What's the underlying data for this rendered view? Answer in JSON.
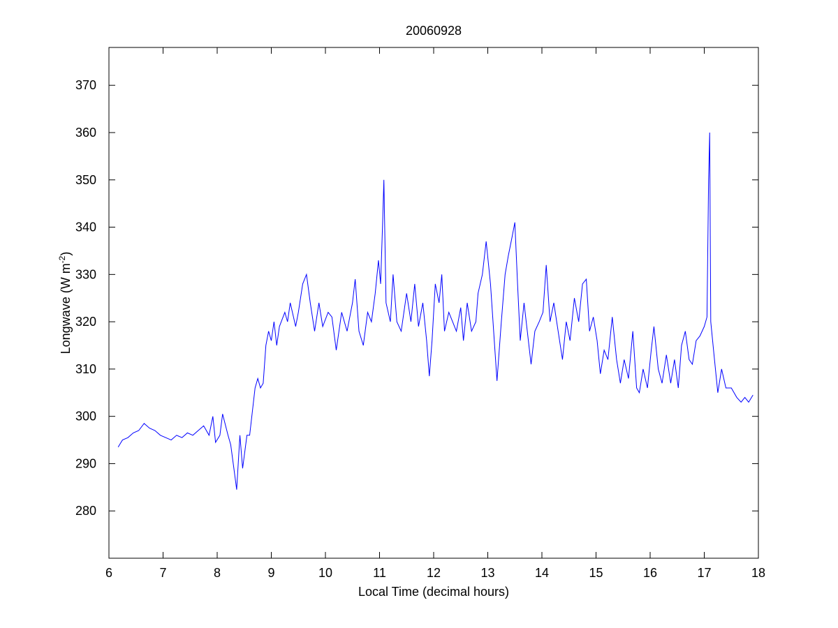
{
  "chart_data": {
    "type": "line",
    "title": "20060928",
    "xlabel": "Local Time (decimal hours)",
    "ylabel": "Longwave (W m",
    "ylabel_sup": "-2",
    "ylabel_end": ")",
    "color": "#0000ff",
    "xlim": [
      6,
      18
    ],
    "xticks": [
      6,
      7,
      8,
      9,
      10,
      11,
      12,
      13,
      14,
      15,
      16,
      17,
      18
    ],
    "ylim": [
      270,
      378
    ],
    "yticks": [
      280,
      290,
      300,
      310,
      320,
      330,
      340,
      350,
      360,
      370
    ],
    "x": [
      6.17,
      6.25,
      6.35,
      6.45,
      6.55,
      6.65,
      6.75,
      6.85,
      6.95,
      7.05,
      7.15,
      7.25,
      7.35,
      7.45,
      7.55,
      7.65,
      7.75,
      7.85,
      7.92,
      7.97,
      8.05,
      8.1,
      8.2,
      8.25,
      8.32,
      8.36,
      8.42,
      8.47,
      8.55,
      8.6,
      8.7,
      8.75,
      8.8,
      8.85,
      8.9,
      8.95,
      9.0,
      9.05,
      9.1,
      9.15,
      9.25,
      9.3,
      9.35,
      9.45,
      9.5,
      9.58,
      9.65,
      9.72,
      9.8,
      9.88,
      9.95,
      10.05,
      10.12,
      10.2,
      10.3,
      10.4,
      10.5,
      10.55,
      10.62,
      10.7,
      10.78,
      10.85,
      10.92,
      10.98,
      11.02,
      11.06,
      11.08,
      11.12,
      11.2,
      11.25,
      11.32,
      11.4,
      11.5,
      11.58,
      11.65,
      11.72,
      11.8,
      11.87,
      11.92,
      11.97,
      12.03,
      12.1,
      12.15,
      12.2,
      12.28,
      12.35,
      12.42,
      12.5,
      12.55,
      12.62,
      12.7,
      12.78,
      12.82,
      12.9,
      12.97,
      13.05,
      13.12,
      13.17,
      13.25,
      13.32,
      13.38,
      13.45,
      13.5,
      13.55,
      13.6,
      13.67,
      13.73,
      13.8,
      13.87,
      13.95,
      14.02,
      14.08,
      14.15,
      14.22,
      14.3,
      14.38,
      14.45,
      14.52,
      14.6,
      14.68,
      14.75,
      14.82,
      14.88,
      14.95,
      15.02,
      15.08,
      15.15,
      15.22,
      15.3,
      15.38,
      15.45,
      15.52,
      15.6,
      15.68,
      15.75,
      15.8,
      15.87,
      15.95,
      16.02,
      16.07,
      16.15,
      16.22,
      16.3,
      16.38,
      16.45,
      16.52,
      16.58,
      16.65,
      16.72,
      16.78,
      16.85,
      16.92,
      17.0,
      17.05,
      17.08,
      17.1,
      17.12,
      17.18,
      17.25,
      17.32,
      17.4,
      17.5,
      17.6,
      17.68,
      17.75,
      17.82,
      17.9
    ],
    "values": [
      293.5,
      295,
      295.5,
      296.5,
      297,
      298.5,
      297.5,
      297,
      296,
      295.5,
      295,
      296,
      295.5,
      296.5,
      296,
      297,
      298,
      296,
      300,
      294.5,
      296,
      300.5,
      296,
      294,
      288,
      284.5,
      296,
      289,
      296,
      296,
      306,
      308,
      306,
      307,
      315,
      318,
      316,
      320,
      315,
      319,
      322,
      320,
      324,
      319,
      322,
      328,
      330,
      324,
      318,
      324,
      319,
      322,
      321,
      314,
      322,
      318,
      324,
      329,
      318,
      315,
      322,
      320,
      326,
      333,
      328,
      342,
      350,
      324,
      320,
      330,
      320,
      318,
      326,
      320,
      328,
      319,
      324,
      316,
      308.5,
      316,
      328,
      324,
      330,
      318,
      322,
      320,
      318,
      323,
      316,
      324,
      318,
      320,
      326,
      330,
      337,
      328,
      316,
      307.5,
      320,
      330,
      334,
      338,
      341,
      328,
      316,
      324,
      318,
      311,
      318,
      320,
      322,
      332,
      320,
      324,
      318,
      312,
      320,
      316,
      325,
      320,
      328,
      329,
      318,
      321,
      316,
      309,
      314,
      312,
      321,
      312,
      307,
      312,
      308,
      318,
      306,
      305,
      310,
      306,
      314,
      319,
      310,
      307,
      313,
      307,
      312,
      306,
      315,
      318,
      312,
      311,
      316,
      317,
      319,
      321,
      350,
      360,
      320,
      313,
      305,
      310,
      306,
      306,
      304,
      303,
      304,
      303,
      304.5
    ]
  }
}
